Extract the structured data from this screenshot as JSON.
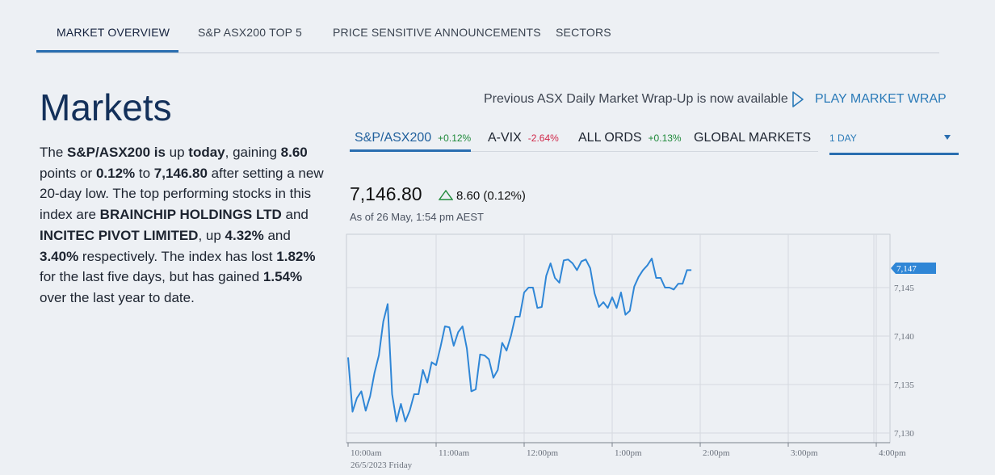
{
  "top_tabs": [
    {
      "label": "MARKET OVERVIEW"
    },
    {
      "label": "S&P ASX200 TOP 5"
    },
    {
      "label": "PRICE SENSITIVE ANNOUNCEMENTS"
    },
    {
      "label": "SECTORS"
    }
  ],
  "title": "Markets",
  "summary": {
    "p1": "The ",
    "b1": "S&P/ASX200 is",
    "p2": " up ",
    "b2": "today",
    "p3": ", gaining ",
    "b3": "8.60",
    "p4": " points or ",
    "b4": "0.12%",
    "p5": " to ",
    "b5": "7,146.80",
    "p6": " after setting a new 20-day low. The top performing stocks in this index are ",
    "b6": "BRAINCHIP HOLDINGS LTD",
    "p7": " and ",
    "b7": "INCITEC PIVOT LIMITED",
    "p8": ", up ",
    "b8": "4.32%",
    "p9": " and ",
    "b9": "3.40%",
    "p10": " respectively. The index has lost ",
    "b10": "1.82%",
    "p11": " for the last five days, but has gained ",
    "b11": "1.54%",
    "p12": " over the last year to date."
  },
  "wrap": {
    "text": "Previous ASX Daily Market Wrap-Up is now available",
    "link": "PLAY MARKET WRAP",
    "icon": "play-icon"
  },
  "index_tabs": [
    {
      "label": "S&P/ASX200",
      "change": "+0.12%"
    },
    {
      "label": "A-VIX",
      "change": "-2.64%"
    },
    {
      "label": "ALL ORDS",
      "change": "+0.13%"
    },
    {
      "label": "GLOBAL MARKETS",
      "change": ""
    }
  ],
  "range": {
    "selected": "1 DAY"
  },
  "quote": {
    "price": "7,146.80",
    "delta": "8.60 (0.12%)",
    "as_of": "As of 26 May, 1:54 pm AEST"
  },
  "colors": {
    "accent": "#2a6eb0",
    "up": "#1f8a3a",
    "down": "#d0294a",
    "line": "#2f86d6",
    "badge": "#2f86d6"
  },
  "chart_data": {
    "type": "line",
    "x_tick_labels": [
      "10:00am",
      "11:00am",
      "12:00pm",
      "1:00pm",
      "2:00pm",
      "3:00pm",
      "4:00pm"
    ],
    "x_sublabel": "26/5/2023 Friday",
    "y_tick_labels": [
      "7,145",
      "7,140",
      "7,135",
      "7,130"
    ],
    "y_ticks": [
      7145,
      7140,
      7135,
      7130
    ],
    "ylim": [
      7129,
      7150.5
    ],
    "xlim_hours": [
      10.0,
      16.2
    ],
    "last_value_label": "7,147",
    "last_value": 7147,
    "grid": true,
    "series": [
      {
        "x": [
          10.0,
          10.05,
          10.1,
          10.15,
          10.2,
          10.25,
          10.3,
          10.35,
          10.4,
          10.45,
          10.5,
          10.55,
          10.6,
          10.65,
          10.7,
          10.75,
          10.8,
          10.85,
          10.9,
          10.95,
          11.0,
          11.05,
          11.1,
          11.15,
          11.2,
          11.25,
          11.3,
          11.35,
          11.4,
          11.45,
          11.5,
          11.55,
          11.6,
          11.65,
          11.7,
          11.75,
          11.8,
          11.85,
          11.9,
          11.95,
          12.0,
          12.05,
          12.1,
          12.15,
          12.2,
          12.25,
          12.3,
          12.35,
          12.4,
          12.45,
          12.5,
          12.55,
          12.6,
          12.65,
          12.7,
          12.75,
          12.8,
          12.85,
          12.9,
          12.95,
          13.0,
          13.05,
          13.1,
          13.15,
          13.2,
          13.25,
          13.3,
          13.35,
          13.4,
          13.45,
          13.5,
          13.55,
          13.6,
          13.65,
          13.7,
          13.75,
          13.8,
          13.85,
          13.9
        ],
        "values": [
          7137.8,
          7132.2,
          7133.6,
          7134.3,
          7132.3,
          7133.8,
          7136.2,
          7138.0,
          7141.5,
          7143.3,
          7134.0,
          7131.2,
          7133.0,
          7131.2,
          7132.3,
          7134.0,
          7134.0,
          7136.5,
          7135.2,
          7137.3,
          7137.0,
          7138.9,
          7141.0,
          7140.9,
          7139.0,
          7140.4,
          7141.0,
          7138.7,
          7134.3,
          7134.5,
          7138.1,
          7138.0,
          7137.6,
          7135.7,
          7136.5,
          7139.3,
          7138.5,
          7140.0,
          7142.0,
          7142.0,
          7144.5,
          7145.0,
          7145.0,
          7142.9,
          7143.0,
          7146.2,
          7147.5,
          7146.0,
          7145.5,
          7147.8,
          7147.9,
          7147.5,
          7146.8,
          7147.7,
          7147.9,
          7147.0,
          7144.4,
          7143.0,
          7143.5,
          7142.9,
          7144.0,
          7142.9,
          7144.5,
          7142.2,
          7142.6,
          7145.1,
          7146.1,
          7146.8,
          7147.3,
          7148.0,
          7146.0,
          7146.0,
          7145.0,
          7145.0,
          7144.8,
          7145.4,
          7145.4,
          7146.8,
          7146.8
        ]
      }
    ]
  }
}
